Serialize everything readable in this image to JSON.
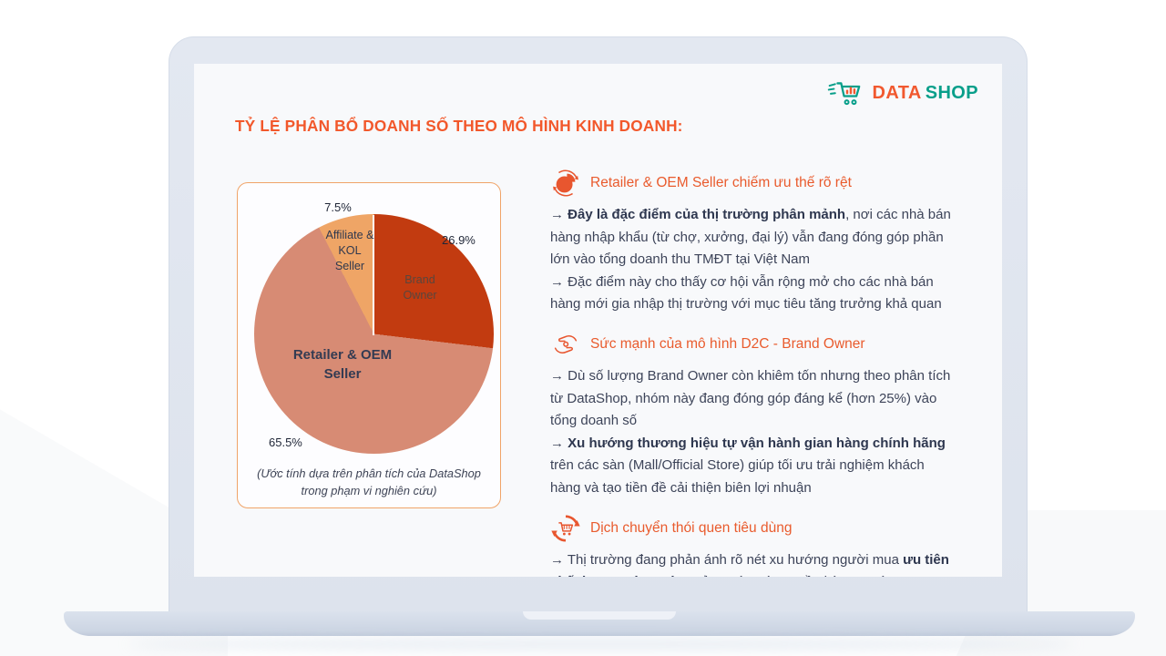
{
  "logo": {
    "brand_first": "DATA",
    "brand_second": "SHOP"
  },
  "title": "TỶ LỆ PHÂN BỔ DOANH SỐ THEO MÔ HÌNH KINH DOANH:",
  "chart_data": {
    "type": "pie",
    "labels": [
      "Brand Owner",
      "Retailer & OEM Seller",
      "Affiliate & KOL Seller"
    ],
    "values": [
      26.9,
      65.5,
      7.5
    ],
    "unit": "%",
    "colors": [
      "#c23b10",
      "#d78b74",
      "#efa566"
    ],
    "start_angle_deg": 0,
    "direction": "clockwise",
    "pct_labels": [
      "26.9%",
      "65.5%",
      "7.5%"
    ],
    "slice_display": [
      "Brand\nOwner",
      "Retailer & OEM\nSeller",
      "Affiliate &\nKOL\nSeller"
    ],
    "caption": "(Ước tính dựa trên phân tích của DataShop trong phạm vi nghiên cứu)"
  },
  "accent_colors": {
    "orange": "#f2582b",
    "teal": "#089f8a",
    "panel_border": "#f0a468"
  },
  "sections": [
    {
      "icon": "pie-chart-refresh-icon",
      "heading": "Retailer & OEM Seller chiếm ưu thế rõ rệt",
      "paragraph": [
        {
          "t": "→ ",
          "b": false
        },
        {
          "t": "Đây là đặc điểm của thị trường phân mảnh",
          "b": true
        },
        {
          "t": ", nơi các nhà bán hàng nhập khẩu (từ chợ, xưởng, đại lý) vẫn đang đóng góp phần lớn vào tổng doanh thu TMĐT tại Việt Nam\n",
          "b": false
        },
        {
          "t": "→ Đặc điểm này cho thấy cơ hội vẫn rộng mở cho các nhà bán hàng mới gia nhập thị trường với mục tiêu tăng trưởng khả quan",
          "b": false
        }
      ]
    },
    {
      "icon": "hands-exchange-icon",
      "heading": "Sức mạnh của mô hình D2C - Brand Owner",
      "paragraph": [
        {
          "t": "→ Dù số lượng Brand Owner còn khiêm tốn nhưng theo phân tích từ DataShop, nhóm này đang đóng góp đáng kể (hơn 25%) vào tổng doanh số\n",
          "b": false
        },
        {
          "t": "→ ",
          "b": false
        },
        {
          "t": "Xu hướng thương hiệu tự vận hành gian hàng chính hãng",
          "b": true
        },
        {
          "t": " trên các sàn (Mall/Official Store) giúp tối ưu trải nghiệm khách hàng và tạo tiền đề cải thiện biên lợi nhuận",
          "b": false
        }
      ]
    },
    {
      "icon": "cart-refresh-icon",
      "heading": "Dịch chuyển thói quen tiêu dùng",
      "paragraph": [
        {
          "t": "→ Thị trường đang phản ánh rõ nét xu hướng người mua ",
          "b": false
        },
        {
          "t": "ưu tiên chất lượng và sự tin tưởng",
          "b": true
        },
        {
          "t": " vào các nguồn hàng uy tín",
          "b": false
        }
      ]
    }
  ]
}
